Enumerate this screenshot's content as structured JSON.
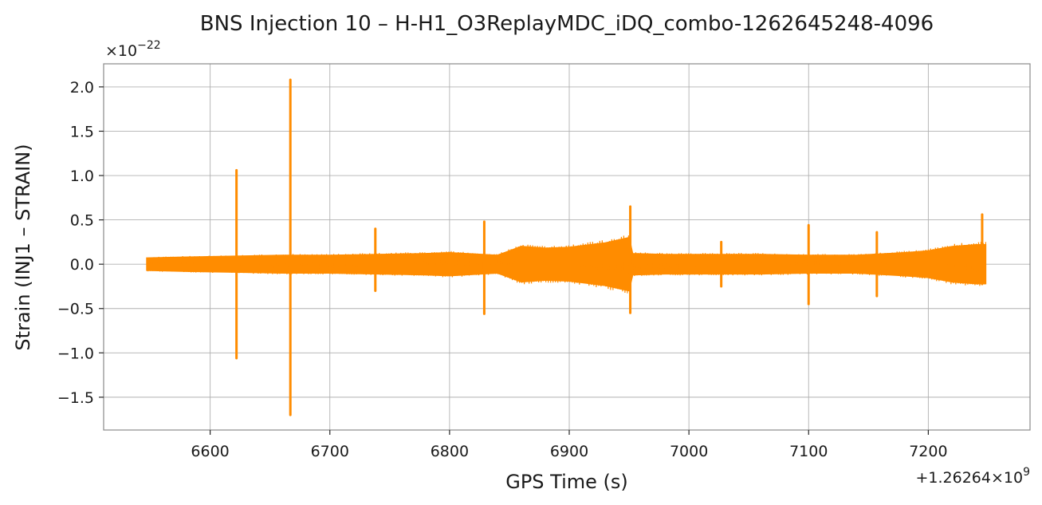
{
  "chart_data": {
    "type": "line",
    "title": "BNS Injection 10 – H-H1_O3ReplayMDC_iDQ_combo-1262645248-4096",
    "xlabel": "GPS Time (s)",
    "ylabel": "Strain (INJ1 – STRAIN)",
    "x_offset_label": "+1.26264×10",
    "x_offset_exponent": "9",
    "y_scale_label": "×10",
    "y_scale_exponent": "−22",
    "xlim": [
      6511,
      7285
    ],
    "ylim": [
      -1.87,
      2.26
    ],
    "x_ticks": [
      6600,
      6700,
      6800,
      6900,
      7000,
      7100,
      7200
    ],
    "x_tick_labels": [
      "6600",
      "6700",
      "6800",
      "6900",
      "7000",
      "7100",
      "7200"
    ],
    "y_ticks": [
      -1.5,
      -1.0,
      -0.5,
      0.0,
      0.5,
      1.0,
      1.5,
      2.0
    ],
    "y_tick_labels": [
      "−1.5",
      "−1.0",
      "−0.5",
      "0.0",
      "0.5",
      "1.0",
      "1.5",
      "2.0"
    ],
    "grid": true,
    "series": [
      {
        "color": "#ff8c00",
        "x_range": [
          6547,
          7248
        ],
        "envelope": {
          "x": [
            6547,
            6580,
            6620,
            6660,
            6700,
            6740,
            6780,
            6800,
            6840,
            6860,
            6880,
            6900,
            6930,
            6950,
            6953,
            6980,
            7020,
            7060,
            7100,
            7140,
            7180,
            7200,
            7220,
            7240,
            7248
          ],
          "upper": [
            0.07,
            0.08,
            0.09,
            0.1,
            0.1,
            0.11,
            0.12,
            0.13,
            0.1,
            0.2,
            0.18,
            0.19,
            0.24,
            0.3,
            0.12,
            0.11,
            0.11,
            0.11,
            0.1,
            0.1,
            0.13,
            0.15,
            0.2,
            0.22,
            0.22
          ],
          "lower": [
            -0.07,
            -0.08,
            -0.09,
            -0.1,
            -0.1,
            -0.11,
            -0.12,
            -0.13,
            -0.1,
            -0.2,
            -0.18,
            -0.19,
            -0.24,
            -0.3,
            -0.12,
            -0.11,
            -0.11,
            -0.11,
            -0.1,
            -0.1,
            -0.13,
            -0.15,
            -0.2,
            -0.22,
            -0.22
          ]
        },
        "spikes": [
          {
            "x": 6622,
            "max": 1.06,
            "min": -1.06
          },
          {
            "x": 6667,
            "max": 2.08,
            "min": -1.7
          },
          {
            "x": 6738,
            "max": 0.4,
            "min": -0.3
          },
          {
            "x": 6829,
            "max": 0.48,
            "min": -0.56
          },
          {
            "x": 6951,
            "max": 0.65,
            "min": -0.55
          },
          {
            "x": 7027,
            "max": 0.25,
            "min": -0.25
          },
          {
            "x": 7100,
            "max": 0.44,
            "min": -0.45
          },
          {
            "x": 7157,
            "max": 0.36,
            "min": -0.36
          },
          {
            "x": 7245,
            "max": 0.56,
            "min": -0.22
          }
        ]
      }
    ]
  }
}
